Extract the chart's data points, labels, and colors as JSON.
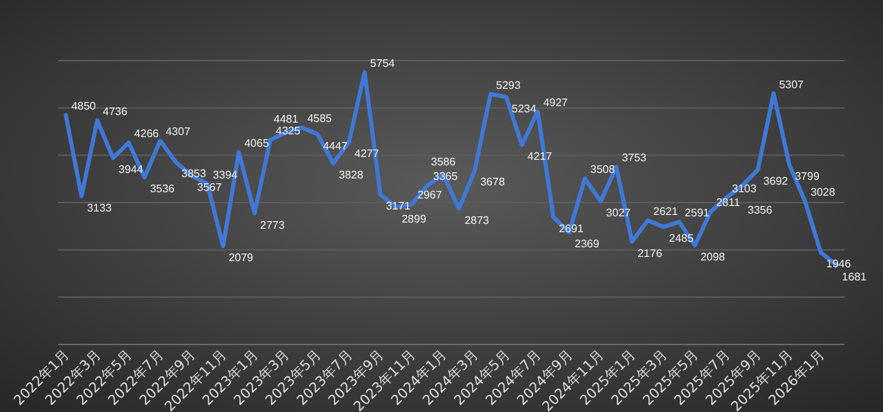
{
  "chart_data": {
    "type": "line",
    "categories": [
      "2022年1月",
      null,
      "2022年3月",
      null,
      "2022年5月",
      null,
      "2022年7月",
      null,
      "2022年9月",
      null,
      "2022年11月",
      null,
      "2023年1月",
      null,
      "2023年3月",
      null,
      "2023年5月",
      null,
      "2023年7月",
      null,
      "2023年9月",
      null,
      "2023年11月",
      null,
      "2024年1月",
      null,
      "2024年3月",
      null,
      "2024年5月",
      null,
      "2024年7月",
      null,
      "2024年9月",
      null,
      "2024年11月",
      null,
      "2025年1月",
      null,
      "2025年3月",
      null,
      "2025年5月",
      null,
      "2025年7月",
      null,
      "2025年9月",
      null,
      "2025年11月",
      null,
      "2026年1月",
      null
    ],
    "series": [
      {
        "color": "#3f78d6",
        "values": [
          4850,
          3133,
          4736,
          3944,
          4266,
          3536,
          4307,
          3853,
          3567,
          3394,
          2079,
          4065,
          2773,
          4325,
          4481,
          4585,
          4447,
          3828,
          4277,
          5754,
          3171,
          2899,
          2967,
          3365,
          3586,
          2873,
          3678,
          5293,
          5234,
          4217,
          4927,
          2691,
          2369,
          3508,
          3027,
          3753,
          2176,
          2621,
          2485,
          2591,
          2098,
          2811,
          3103,
          3356,
          3692,
          5307,
          3799,
          3028,
          1946,
          1681
        ]
      }
    ],
    "ylim": [
      0,
      6000
    ],
    "yticks": [
      {
        "value": 0,
        "label": null
      },
      {
        "value": 1000,
        "label": null
      },
      {
        "value": 2000,
        "label": null
      },
      {
        "value": 3000,
        "label": null
      },
      {
        "value": 4000,
        "label": null
      },
      {
        "value": 5000,
        "label": null
      },
      {
        "value": 6000,
        "label": null
      }
    ],
    "tick_labels": "x",
    "grid": "y",
    "data_labels": true,
    "marker": "none",
    "line_style": "solid"
  }
}
